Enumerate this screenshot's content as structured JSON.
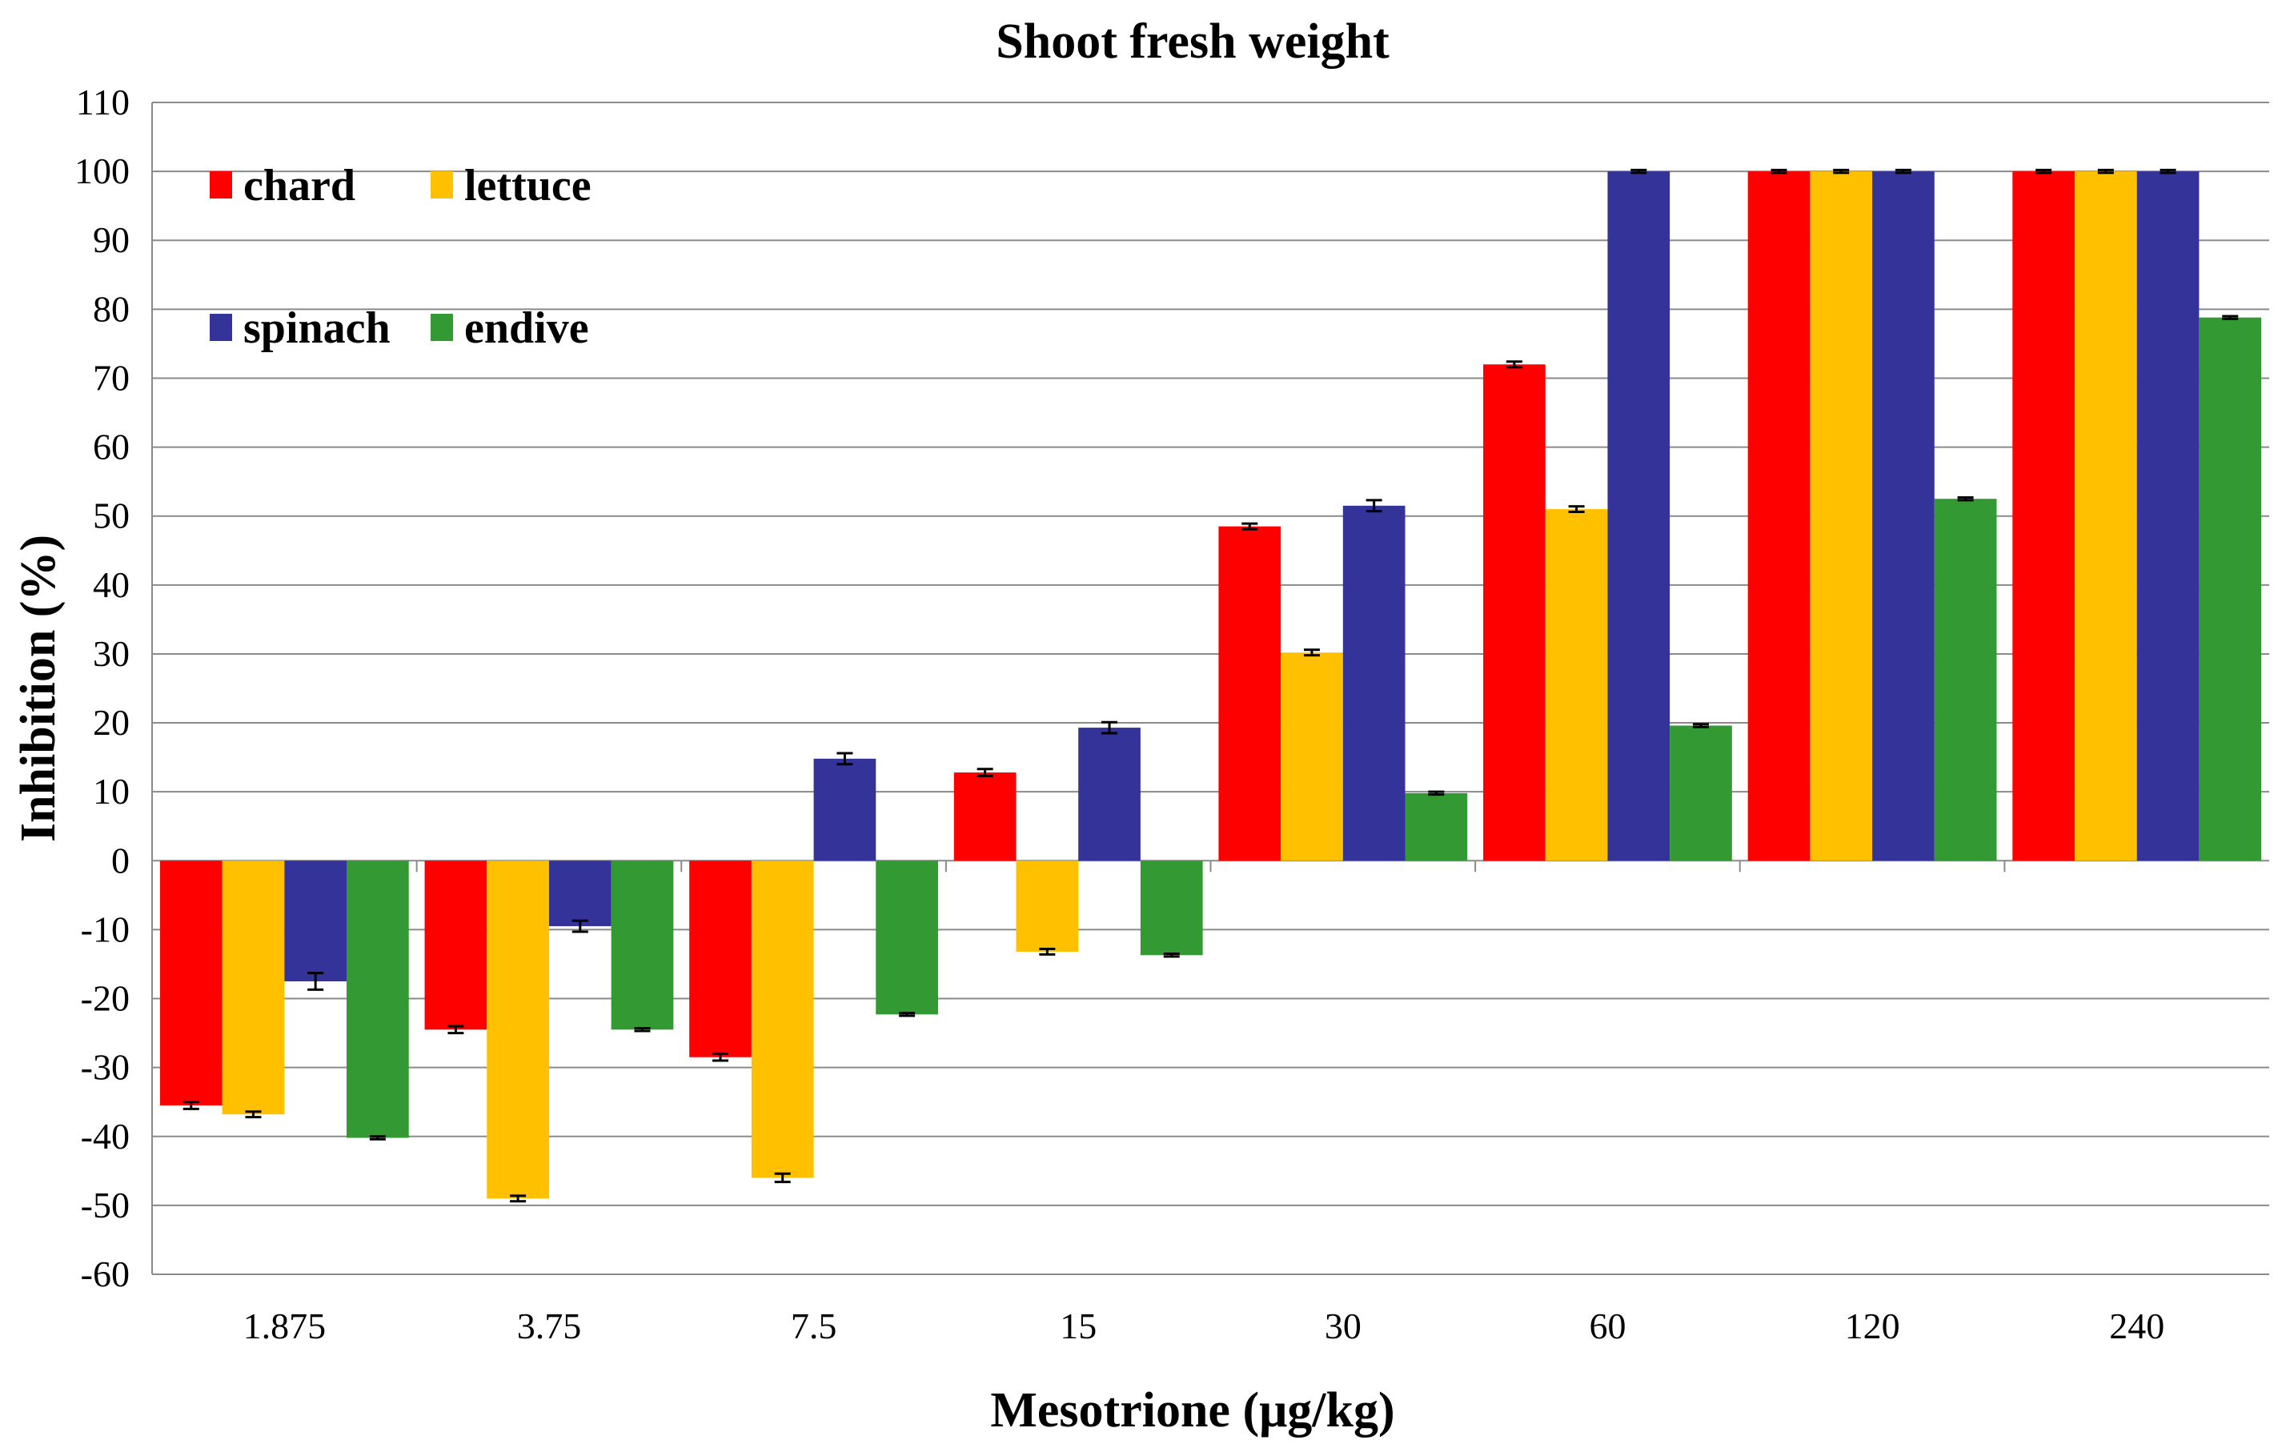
{
  "chart_data": {
    "type": "bar",
    "title": "Shoot fresh weight",
    "xlabel": "Mesotrione (μg/kg)",
    "ylabel": "Inhibition (%)",
    "ylim": [
      -60,
      110
    ],
    "yticks": [
      -60,
      -50,
      -40,
      -30,
      -20,
      -10,
      0,
      10,
      20,
      30,
      40,
      50,
      60,
      70,
      80,
      90,
      100,
      110
    ],
    "grid": true,
    "legend_position": "top-left",
    "categories": [
      "1.875",
      "3.75",
      "7.5",
      "15",
      "30",
      "60",
      "120",
      "240"
    ],
    "series": [
      {
        "name": "chard",
        "color": "#ff0000",
        "values": [
          -35.5,
          -24.5,
          -28.5,
          12.8,
          48.5,
          72,
          100,
          100
        ],
        "errors": [
          0.5,
          0.5,
          0.5,
          0.5,
          0.4,
          0.4,
          0.2,
          0.2
        ]
      },
      {
        "name": "lettuce",
        "color": "#ffc000",
        "values": [
          -36.8,
          -49,
          -46,
          -13.2,
          30.2,
          51,
          100,
          100
        ],
        "errors": [
          0.4,
          0.4,
          0.6,
          0.4,
          0.4,
          0.4,
          0.2,
          0.2
        ]
      },
      {
        "name": "spinach",
        "color": "#333399",
        "values": [
          -17.5,
          -9.5,
          14.8,
          19.3,
          51.5,
          100,
          100,
          100
        ],
        "errors": [
          1.2,
          0.8,
          0.8,
          0.8,
          0.8,
          0.2,
          0.2,
          0.2
        ]
      },
      {
        "name": "endive",
        "color": "#339933",
        "values": [
          -40.2,
          -24.5,
          -22.3,
          -13.7,
          9.8,
          19.6,
          52.5,
          78.8
        ],
        "errors": [
          0.2,
          0.2,
          0.2,
          0.2,
          0.2,
          0.2,
          0.2,
          0.2
        ]
      }
    ]
  }
}
